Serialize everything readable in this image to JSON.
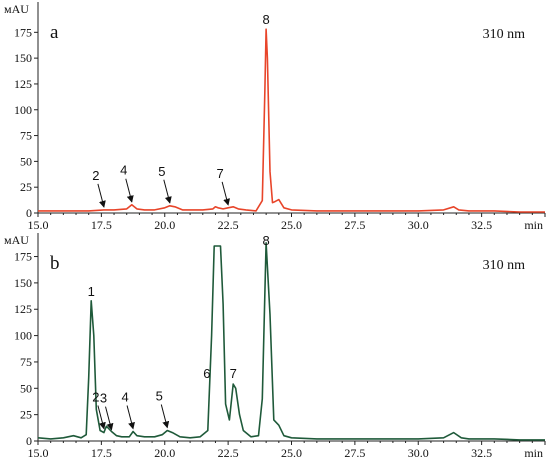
{
  "chart_data": [
    {
      "type": "line",
      "panel_letter": "a",
      "wavelength": "310 nm",
      "ylabel": "мAU",
      "xlabel": "min",
      "xlim": [
        15.0,
        35.0
      ],
      "ylim": [
        0,
        185
      ],
      "x_ticks": [
        "15.0",
        "17.5",
        "20.0",
        "22.5",
        "25.0",
        "27.5",
        "30.0",
        "32.5"
      ],
      "y_ticks": [
        "0",
        "25",
        "50",
        "75",
        "100",
        "125",
        "150",
        "175"
      ],
      "color": "#e8452a",
      "grid": false,
      "series": [
        {
          "x": [
            15.0,
            16.0,
            17.0,
            17.6,
            18.0,
            18.5,
            18.7,
            18.9,
            19.2,
            19.6,
            20.0,
            20.2,
            20.4,
            20.7,
            21.0,
            21.5,
            21.9,
            22.0,
            22.1,
            22.3,
            22.5,
            22.7,
            22.9,
            23.2,
            23.6,
            23.85,
            23.95,
            24.0,
            24.05,
            24.15,
            24.25,
            24.35,
            24.5,
            24.7,
            25.0,
            26.0,
            27.0,
            28.0,
            29.0,
            30.0,
            31.0,
            31.4,
            31.6,
            32.0,
            33.0,
            34.0,
            35.0
          ],
          "y": [
            2,
            2,
            2,
            3,
            3,
            4,
            8,
            4,
            3,
            3,
            5,
            7,
            6,
            3,
            3,
            3,
            4,
            6,
            5,
            4,
            5,
            6,
            4,
            3,
            2,
            12,
            120,
            178,
            150,
            40,
            10,
            11,
            13,
            5,
            3,
            2,
            2,
            2,
            2,
            2,
            3,
            6,
            3,
            2,
            2,
            1,
            1
          ]
        }
      ],
      "peak_labels": [
        {
          "label": "2",
          "x": 17.6,
          "y": 3,
          "arrow": true
        },
        {
          "label": "4",
          "x": 18.7,
          "y": 8,
          "arrow": true
        },
        {
          "label": "5",
          "x": 20.2,
          "y": 7,
          "arrow": true
        },
        {
          "label": "7",
          "x": 22.5,
          "y": 5,
          "arrow": true
        },
        {
          "label": "8",
          "x": 24.0,
          "y": 178,
          "arrow": false
        }
      ]
    },
    {
      "type": "line",
      "panel_letter": "b",
      "wavelength": "310 nm",
      "ylabel": "мAU",
      "xlabel": "min",
      "xlim": [
        15.0,
        35.0
      ],
      "ylim": [
        0,
        185
      ],
      "x_ticks": [
        "15.0",
        "17.5",
        "20.0",
        "22.5",
        "25.0",
        "27.5",
        "30.0",
        "32.5"
      ],
      "y_ticks": [
        "0",
        "25",
        "50",
        "75",
        "100",
        "125",
        "150",
        "175"
      ],
      "color": "#1f5a3a",
      "grid": false,
      "series": [
        {
          "x": [
            15.0,
            15.5,
            16.0,
            16.4,
            16.7,
            16.9,
            17.0,
            17.1,
            17.2,
            17.3,
            17.45,
            17.6,
            17.7,
            17.9,
            18.1,
            18.3,
            18.6,
            18.75,
            18.9,
            19.2,
            19.6,
            19.9,
            20.1,
            20.3,
            20.6,
            21.0,
            21.4,
            21.7,
            21.85,
            21.95,
            22.0,
            22.2,
            22.3,
            22.4,
            22.55,
            22.7,
            22.8,
            22.95,
            23.1,
            23.4,
            23.7,
            23.85,
            24.0,
            24.15,
            24.3,
            24.5,
            24.7,
            25.0,
            26.0,
            27.0,
            28.0,
            29.0,
            30.0,
            31.0,
            31.4,
            31.7,
            32.0,
            33.0,
            34.0,
            35.0
          ],
          "y": [
            3,
            2,
            3,
            5,
            3,
            6,
            60,
            133,
            100,
            30,
            10,
            8,
            14,
            9,
            5,
            4,
            4,
            9,
            5,
            4,
            4,
            6,
            10,
            8,
            4,
            3,
            4,
            10,
            100,
            185,
            185,
            185,
            130,
            35,
            20,
            54,
            50,
            25,
            10,
            4,
            5,
            40,
            188,
            120,
            20,
            15,
            5,
            3,
            2,
            2,
            2,
            2,
            2,
            3,
            8,
            3,
            2,
            2,
            1,
            1
          ]
        }
      ],
      "peak_labels": [
        {
          "label": "1",
          "x": 17.1,
          "y": 133,
          "arrow": false
        },
        {
          "label": "2",
          "x": 17.6,
          "y": 9,
          "arrow": true
        },
        {
          "label": "3",
          "x": 17.9,
          "y": 8,
          "arrow": true
        },
        {
          "label": "4",
          "x": 18.75,
          "y": 9,
          "arrow": true
        },
        {
          "label": "5",
          "x": 20.1,
          "y": 10,
          "arrow": true
        },
        {
          "label": "6",
          "x": 21.9,
          "y": 60,
          "arrow": false
        },
        {
          "label": "7",
          "x": 22.7,
          "y": 54,
          "arrow": false
        },
        {
          "label": "8",
          "x": 24.0,
          "y": 188,
          "arrow": false
        }
      ]
    }
  ]
}
